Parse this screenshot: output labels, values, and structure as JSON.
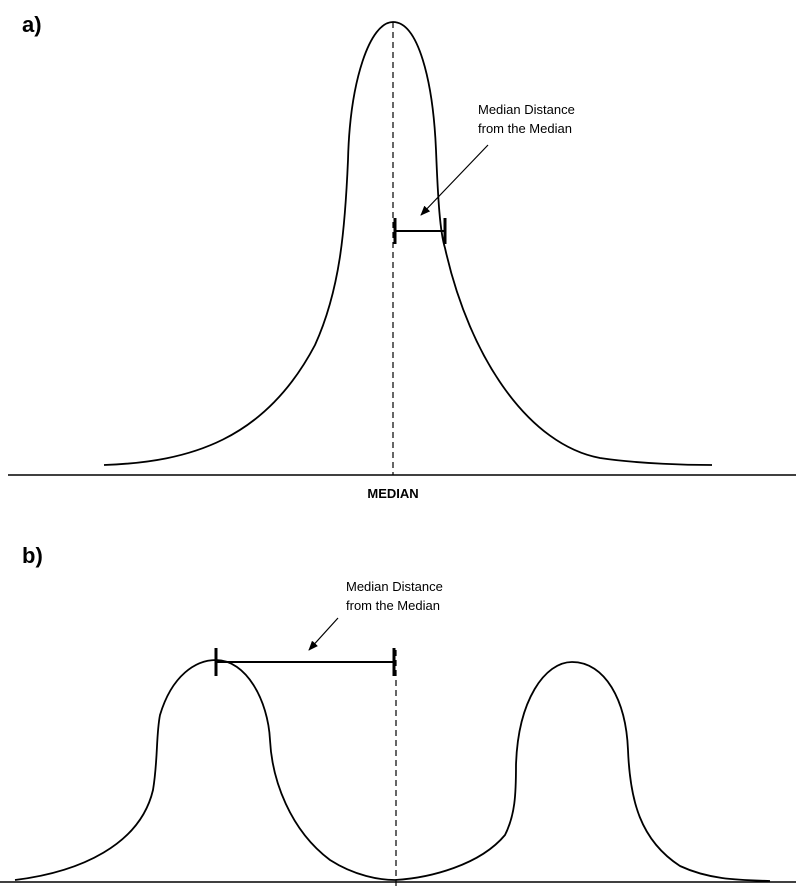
{
  "panel_a": {
    "label": "a)",
    "annotation_line1": "Median Distance",
    "annotation_line2": "from the Median",
    "axis_label": "MEDIAN"
  },
  "panel_b": {
    "label": "b)",
    "annotation_line1": "Median Distance",
    "annotation_line2": "from the Median"
  },
  "colors": {
    "ink": "#000000",
    "background": "#ffffff"
  }
}
